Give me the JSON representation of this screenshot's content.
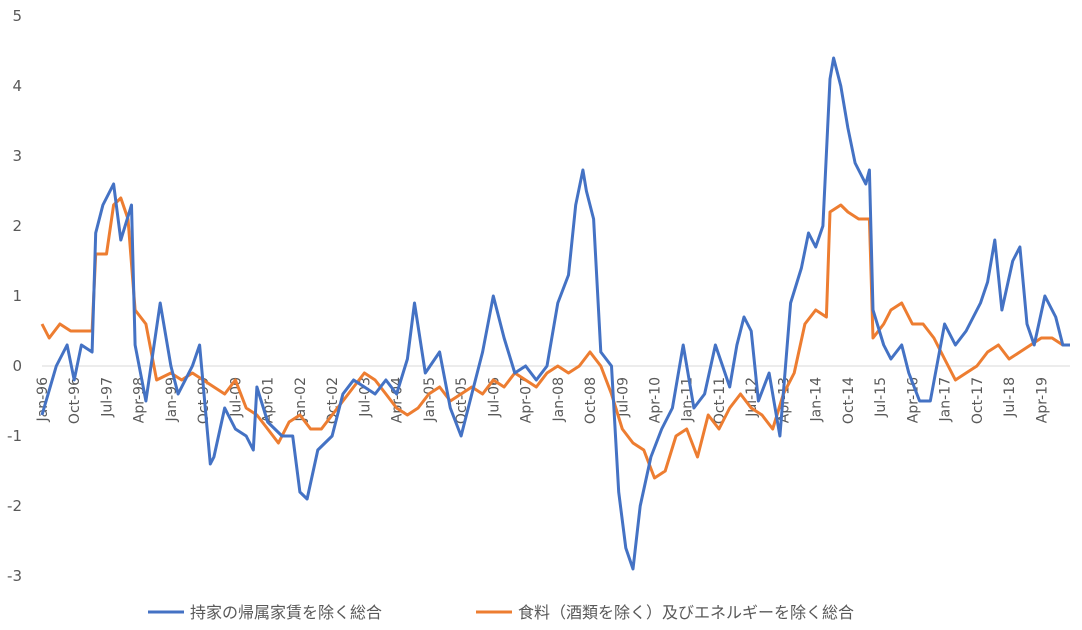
{
  "chart_data": {
    "type": "line",
    "title": "",
    "xlabel": "",
    "ylabel": "",
    "ylim": [
      -3,
      5
    ],
    "yticks": [
      5,
      4,
      3,
      2,
      1,
      0,
      -1,
      -2,
      -3
    ],
    "grid": false,
    "legend_position": "bottom",
    "x_tick_labels": [
      "Jan-96",
      "Oct-96",
      "Jul-97",
      "Apr-98",
      "Jan-99",
      "Oct-99",
      "Jul-00",
      "Apr-01",
      "Jan-02",
      "Oct-02",
      "Jul-03",
      "Apr-04",
      "Jan-05",
      "Oct-05",
      "Jul-06",
      "Apr-07",
      "Jan-08",
      "Oct-08",
      "Jul-09",
      "Apr-10",
      "Jan-11",
      "Oct-11",
      "Jul-12",
      "Apr-13",
      "Jan-14",
      "Oct-14",
      "Jul-15",
      "Apr-16",
      "Jan-17",
      "Oct-17",
      "Jul-18",
      "Apr-19"
    ],
    "x_start": "Jan-96",
    "x_end": "Dec-19",
    "series": [
      {
        "name": "持家の帰属家賃を除く総合",
        "color": "#4472C4",
        "points": [
          [
            "Jan-96",
            -0.7
          ],
          [
            "May-96",
            0.0
          ],
          [
            "Aug-96",
            0.3
          ],
          [
            "Oct-96",
            -0.2
          ],
          [
            "Dec-96",
            0.3
          ],
          [
            "Mar-97",
            0.2
          ],
          [
            "Apr-97",
            1.9
          ],
          [
            "Jun-97",
            2.3
          ],
          [
            "Sep-97",
            2.6
          ],
          [
            "Nov-97",
            1.8
          ],
          [
            "Feb-98",
            2.3
          ],
          [
            "Mar-98",
            0.3
          ],
          [
            "Jun-98",
            -0.5
          ],
          [
            "Oct-98",
            0.9
          ],
          [
            "Jan-99",
            0.0
          ],
          [
            "Mar-99",
            -0.4
          ],
          [
            "Jul-99",
            0.0
          ],
          [
            "Sep-99",
            0.3
          ],
          [
            "Dec-99",
            -1.4
          ],
          [
            "Jan-00",
            -1.3
          ],
          [
            "Apr-00",
            -0.6
          ],
          [
            "Jul-00",
            -0.9
          ],
          [
            "Oct-00",
            -1.0
          ],
          [
            "Dec-00",
            -1.2
          ],
          [
            "Jan-01",
            -0.3
          ],
          [
            "Apr-01",
            -0.8
          ],
          [
            "Aug-01",
            -1.0
          ],
          [
            "Nov-01",
            -1.0
          ],
          [
            "Jan-02",
            -1.8
          ],
          [
            "Mar-02",
            -1.9
          ],
          [
            "Jun-02",
            -1.2
          ],
          [
            "Oct-02",
            -1.0
          ],
          [
            "Jan-03",
            -0.4
          ],
          [
            "Apr-03",
            -0.2
          ],
          [
            "Jul-03",
            -0.3
          ],
          [
            "Oct-03",
            -0.4
          ],
          [
            "Jan-04",
            -0.2
          ],
          [
            "Apr-04",
            -0.4
          ],
          [
            "Jul-04",
            0.1
          ],
          [
            "Sep-04",
            0.9
          ],
          [
            "Dec-04",
            -0.1
          ],
          [
            "Apr-05",
            0.2
          ],
          [
            "Jul-05",
            -0.6
          ],
          [
            "Oct-05",
            -1.0
          ],
          [
            "Jan-06",
            -0.4
          ],
          [
            "Apr-06",
            0.2
          ],
          [
            "Jul-06",
            1.0
          ],
          [
            "Oct-06",
            0.4
          ],
          [
            "Jan-07",
            -0.1
          ],
          [
            "Apr-07",
            0.0
          ],
          [
            "Jul-07",
            -0.2
          ],
          [
            "Oct-07",
            0.0
          ],
          [
            "Jan-08",
            0.9
          ],
          [
            "Apr-08",
            1.3
          ],
          [
            "Jun-08",
            2.3
          ],
          [
            "Aug-08",
            2.8
          ],
          [
            "Sep-08",
            2.5
          ],
          [
            "Nov-08",
            2.1
          ],
          [
            "Jan-09",
            0.2
          ],
          [
            "Apr-09",
            0.0
          ],
          [
            "Jun-09",
            -1.8
          ],
          [
            "Aug-09",
            -2.6
          ],
          [
            "Oct-09",
            -2.9
          ],
          [
            "Dec-09",
            -2.0
          ],
          [
            "Mar-10",
            -1.3
          ],
          [
            "Jun-10",
            -0.9
          ],
          [
            "Sep-10",
            -0.6
          ],
          [
            "Dec-10",
            0.3
          ],
          [
            "Mar-11",
            -0.6
          ],
          [
            "Jun-11",
            -0.4
          ],
          [
            "Sep-11",
            0.3
          ],
          [
            "Nov-11",
            0.0
          ],
          [
            "Jan-12",
            -0.3
          ],
          [
            "Mar-12",
            0.3
          ],
          [
            "May-12",
            0.7
          ],
          [
            "Jul-12",
            0.5
          ],
          [
            "Sep-12",
            -0.5
          ],
          [
            "Dec-12",
            -0.1
          ],
          [
            "Mar-13",
            -1.0
          ],
          [
            "Jun-13",
            0.9
          ],
          [
            "Sep-13",
            1.4
          ],
          [
            "Nov-13",
            1.9
          ],
          [
            "Jan-14",
            1.7
          ],
          [
            "Mar-14",
            2.0
          ],
          [
            "May-14",
            4.1
          ],
          [
            "Jun-14",
            4.4
          ],
          [
            "Aug-14",
            4.0
          ],
          [
            "Oct-14",
            3.4
          ],
          [
            "Dec-14",
            2.9
          ],
          [
            "Mar-15",
            2.6
          ],
          [
            "Apr-15",
            2.8
          ],
          [
            "May-15",
            0.8
          ],
          [
            "Aug-15",
            0.3
          ],
          [
            "Oct-15",
            0.1
          ],
          [
            "Jan-16",
            0.3
          ],
          [
            "Mar-16",
            -0.1
          ],
          [
            "Jun-16",
            -0.5
          ],
          [
            "Sep-16",
            -0.5
          ],
          [
            "Jan-17",
            0.6
          ],
          [
            "Apr-17",
            0.3
          ],
          [
            "Jul-17",
            0.5
          ],
          [
            "Nov-17",
            0.9
          ],
          [
            "Jan-18",
            1.2
          ],
          [
            "Mar-18",
            1.8
          ],
          [
            "May-18",
            0.8
          ],
          [
            "Aug-18",
            1.5
          ],
          [
            "Oct-18",
            1.7
          ],
          [
            "Dec-18",
            0.6
          ],
          [
            "Feb-19",
            0.3
          ],
          [
            "May-19",
            1.0
          ],
          [
            "Aug-19",
            0.7
          ],
          [
            "Oct-19",
            0.3
          ],
          [
            "Dec-19",
            0.3
          ]
        ]
      },
      {
        "name": "食料（酒類を除く）及びエネルギーを除く総合",
        "color": "#ED7D31",
        "points": [
          [
            "Jan-96",
            0.6
          ],
          [
            "Mar-96",
            0.4
          ],
          [
            "Jun-96",
            0.6
          ],
          [
            "Sep-96",
            0.5
          ],
          [
            "Dec-96",
            0.5
          ],
          [
            "Mar-97",
            0.5
          ],
          [
            "Apr-97",
            1.6
          ],
          [
            "Jul-97",
            1.6
          ],
          [
            "Sep-97",
            2.3
          ],
          [
            "Nov-97",
            2.4
          ],
          [
            "Jan-98",
            2.1
          ],
          [
            "Mar-98",
            0.8
          ],
          [
            "Jun-98",
            0.6
          ],
          [
            "Sep-98",
            -0.2
          ],
          [
            "Jan-99",
            -0.1
          ],
          [
            "Apr-99",
            -0.2
          ],
          [
            "Jul-99",
            -0.1
          ],
          [
            "Oct-99",
            -0.2
          ],
          [
            "Jan-00",
            -0.3
          ],
          [
            "Apr-00",
            -0.4
          ],
          [
            "Jul-00",
            -0.2
          ],
          [
            "Oct-00",
            -0.6
          ],
          [
            "Jan-01",
            -0.7
          ],
          [
            "Apr-01",
            -0.9
          ],
          [
            "Jul-01",
            -1.1
          ],
          [
            "Oct-01",
            -0.8
          ],
          [
            "Jan-02",
            -0.7
          ],
          [
            "Apr-02",
            -0.9
          ],
          [
            "Jul-02",
            -0.9
          ],
          [
            "Oct-02",
            -0.7
          ],
          [
            "Jan-03",
            -0.5
          ],
          [
            "Apr-03",
            -0.3
          ],
          [
            "Jul-03",
            -0.1
          ],
          [
            "Oct-03",
            -0.2
          ],
          [
            "Jan-04",
            -0.4
          ],
          [
            "Apr-04",
            -0.6
          ],
          [
            "Jul-04",
            -0.7
          ],
          [
            "Oct-04",
            -0.6
          ],
          [
            "Jan-05",
            -0.4
          ],
          [
            "Apr-05",
            -0.3
          ],
          [
            "Jul-05",
            -0.5
          ],
          [
            "Oct-05",
            -0.4
          ],
          [
            "Jan-06",
            -0.3
          ],
          [
            "Apr-06",
            -0.4
          ],
          [
            "Jul-06",
            -0.2
          ],
          [
            "Oct-06",
            -0.3
          ],
          [
            "Jan-07",
            -0.1
          ],
          [
            "Apr-07",
            -0.2
          ],
          [
            "Jul-07",
            -0.3
          ],
          [
            "Oct-07",
            -0.1
          ],
          [
            "Jan-08",
            0.0
          ],
          [
            "Apr-08",
            -0.1
          ],
          [
            "Jul-08",
            0.0
          ],
          [
            "Oct-08",
            0.2
          ],
          [
            "Jan-09",
            0.0
          ],
          [
            "Apr-09",
            -0.4
          ],
          [
            "Jul-09",
            -0.9
          ],
          [
            "Oct-09",
            -1.1
          ],
          [
            "Jan-10",
            -1.2
          ],
          [
            "Apr-10",
            -1.6
          ],
          [
            "Jul-10",
            -1.5
          ],
          [
            "Oct-10",
            -1.0
          ],
          [
            "Jan-11",
            -0.9
          ],
          [
            "Apr-11",
            -1.3
          ],
          [
            "Jul-11",
            -0.7
          ],
          [
            "Oct-11",
            -0.9
          ],
          [
            "Jan-12",
            -0.6
          ],
          [
            "Apr-12",
            -0.4
          ],
          [
            "Jul-12",
            -0.6
          ],
          [
            "Oct-12",
            -0.7
          ],
          [
            "Jan-13",
            -0.9
          ],
          [
            "Apr-13",
            -0.4
          ],
          [
            "Jul-13",
            -0.1
          ],
          [
            "Oct-13",
            0.6
          ],
          [
            "Jan-14",
            0.8
          ],
          [
            "Apr-14",
            0.7
          ],
          [
            "May-14",
            2.2
          ],
          [
            "Aug-14",
            2.3
          ],
          [
            "Oct-14",
            2.2
          ],
          [
            "Jan-15",
            2.1
          ],
          [
            "Apr-15",
            2.1
          ],
          [
            "May-15",
            0.4
          ],
          [
            "Aug-15",
            0.6
          ],
          [
            "Oct-15",
            0.8
          ],
          [
            "Jan-16",
            0.9
          ],
          [
            "Apr-16",
            0.6
          ],
          [
            "Jul-16",
            0.6
          ],
          [
            "Oct-16",
            0.4
          ],
          [
            "Jan-17",
            0.1
          ],
          [
            "Apr-17",
            -0.2
          ],
          [
            "Jul-17",
            -0.1
          ],
          [
            "Oct-17",
            0.0
          ],
          [
            "Jan-18",
            0.2
          ],
          [
            "Apr-18",
            0.3
          ],
          [
            "Jul-18",
            0.1
          ],
          [
            "Oct-18",
            0.2
          ],
          [
            "Jan-19",
            0.3
          ],
          [
            "Apr-19",
            0.4
          ],
          [
            "Jul-19",
            0.4
          ],
          [
            "Oct-19",
            0.3
          ],
          [
            "Dec-19",
            0.3
          ]
        ]
      }
    ]
  }
}
